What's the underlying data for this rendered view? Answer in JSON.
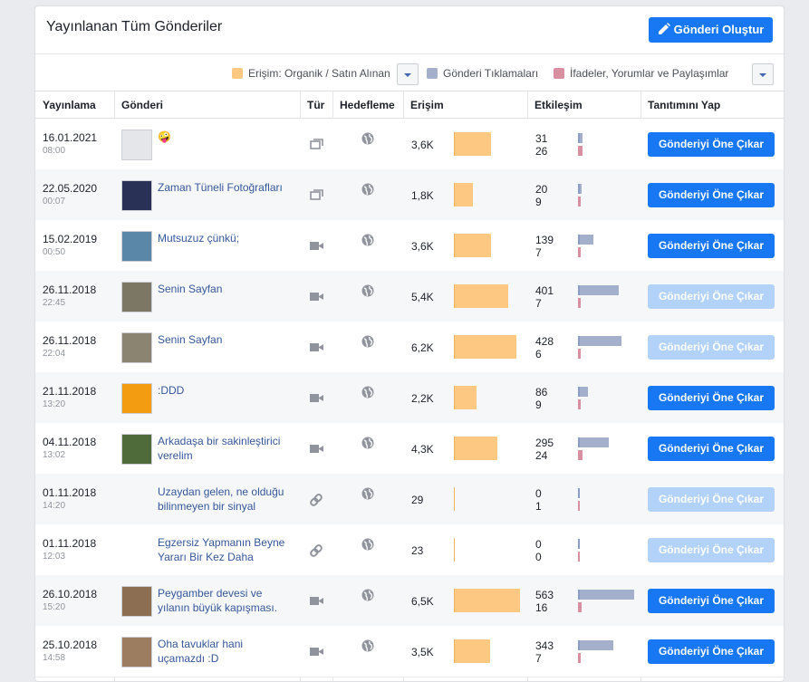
{
  "header": {
    "title": "Yayınlanan Tüm Gönderiler",
    "create_button": "Gönderi Oluştur"
  },
  "legend": [
    {
      "label": "Erişim: Organik / Satın Alınan",
      "color": "#fdc982"
    },
    {
      "label": "Gönderi Tıklamaları",
      "color": "#a3afcb"
    },
    {
      "label": "İfadeler, Yorumlar ve Paylaşımlar",
      "color": "#d98fa2"
    }
  ],
  "table": {
    "columns": [
      "Yayınlama",
      "Gönderi",
      "Tür",
      "Hedefleme",
      "Erişim",
      "Etkileşim",
      "Tanıtımını Yap"
    ],
    "action_label": "Gönderiyi Öne Çıkar",
    "rows": [
      {
        "date": "16.01.2021",
        "time": "08:00",
        "post": "🤪",
        "type": "album",
        "reach": {
          "value": 3600,
          "label": "3,6K"
        },
        "clicks": 31,
        "reactions": 26,
        "boost_enabled": true
      },
      {
        "date": "22.05.2020",
        "time": "00:07",
        "post": "Zaman Tüneli Fotoğrafları",
        "type": "album",
        "reach": {
          "value": 1800,
          "label": "1,8K"
        },
        "clicks": 20,
        "reactions": 9,
        "boost_enabled": true
      },
      {
        "date": "15.02.2019",
        "time": "00:50",
        "post": "Mutsuzuz çünkü;",
        "type": "video",
        "reach": {
          "value": 3600,
          "label": "3,6K"
        },
        "clicks": 139,
        "reactions": 7,
        "boost_enabled": true
      },
      {
        "date": "26.11.2018",
        "time": "22:45",
        "post": "Senin Sayfan",
        "type": "video",
        "reach": {
          "value": 5400,
          "label": "5,4K"
        },
        "clicks": 401,
        "reactions": 7,
        "boost_enabled": false
      },
      {
        "date": "26.11.2018",
        "time": "22:04",
        "post": "Senin Sayfan",
        "type": "video",
        "reach": {
          "value": 6200,
          "label": "6,2K"
        },
        "clicks": 428,
        "reactions": 6,
        "boost_enabled": false
      },
      {
        "date": "21.11.2018",
        "time": "13:20",
        "post": ":DDD",
        "type": "video",
        "reach": {
          "value": 2200,
          "label": "2,2K"
        },
        "clicks": 86,
        "reactions": 9,
        "boost_enabled": true
      },
      {
        "date": "04.11.2018",
        "time": "13:02",
        "post": "Arkadaşa bir sakinleştirici verelim",
        "type": "video",
        "reach": {
          "value": 4300,
          "label": "4,3K"
        },
        "clicks": 295,
        "reactions": 24,
        "boost_enabled": true
      },
      {
        "date": "01.11.2018",
        "time": "14:20",
        "post": "Uzaydan gelen, ne olduğu bilinmeyen bir sinyal",
        "type": "link",
        "reach": 29,
        "clicks": 0,
        "reactions": 1,
        "boost_enabled": false
      },
      {
        "date": "01.11.2018",
        "time": "12:03",
        "post": "Egzersiz Yapmanın Beyne Yararı Bir Kez Daha",
        "type": "link",
        "reach": 23,
        "clicks": 0,
        "reactions": 0,
        "boost_enabled": false
      },
      {
        "date": "26.10.2018",
        "time": "15:20",
        "post": "Peygamber devesi ve yılanın büyük kapışması.",
        "type": "video",
        "reach": {
          "value": 6500,
          "label": "6,5K"
        },
        "clicks": 563,
        "reactions": 16,
        "boost_enabled": true
      },
      {
        "date": "25.10.2018",
        "time": "14:58",
        "post": "Oha tavuklar hani uçamazdı :D",
        "type": "video",
        "reach": {
          "value": 3500,
          "label": "3,5K"
        },
        "clicks": 343,
        "reactions": 7,
        "boost_enabled": true
      }
    ]
  }
}
